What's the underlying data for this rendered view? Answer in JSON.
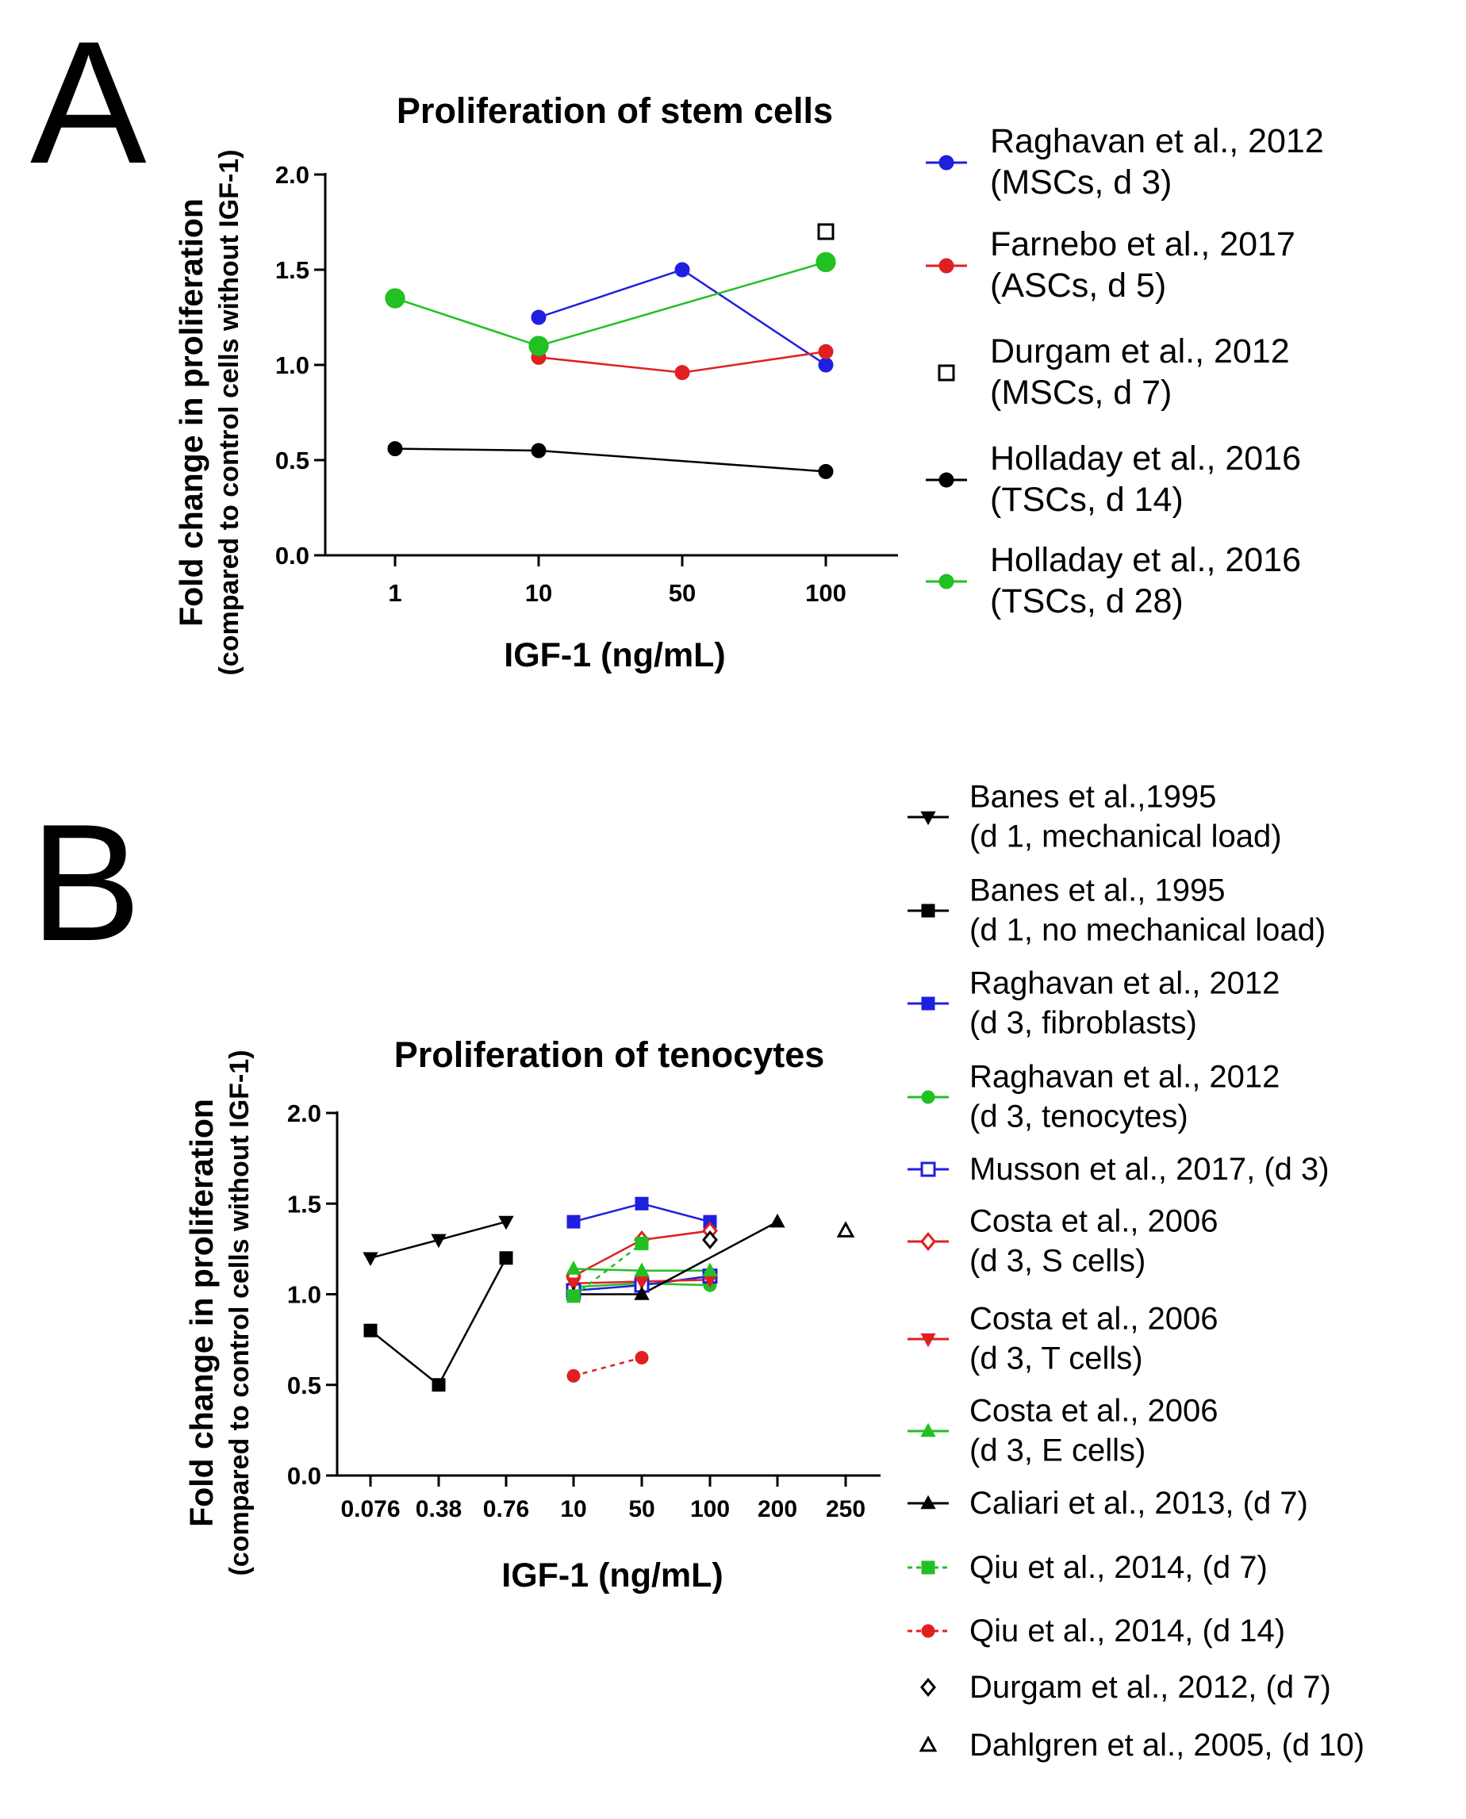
{
  "chart_data": [
    {
      "panel": "A",
      "type": "line",
      "title": "Proliferation of stem cells",
      "xlabel": "IGF-1 (ng/mL)",
      "ylabel": "Fold change in proliferation",
      "ylabel2": "(compared to control cells without IGF-1)",
      "categories": [
        "1",
        "10",
        "50",
        "100"
      ],
      "ylim": [
        0,
        2.0
      ],
      "yticks": [
        "0.0",
        "0.5",
        "1.0",
        "1.5",
        "2.0"
      ],
      "grid": false,
      "legend_position": "right",
      "series": [
        {
          "name": "Raghavan et al., 2012",
          "detail": "(MSCs, d 3)",
          "color": "#1f1fe0",
          "marker": "circle",
          "filled": true,
          "line": "solid",
          "values": [
            null,
            1.25,
            1.5,
            1.0
          ]
        },
        {
          "name": "Farnebo et al., 2017",
          "detail": "(ASCs, d 5)",
          "color": "#e02020",
          "marker": "circle",
          "filled": true,
          "line": "solid",
          "values": [
            null,
            1.04,
            0.96,
            1.07
          ]
        },
        {
          "name": "Durgam et al., 2012",
          "detail": "(MSCs, d 7)",
          "color": "#000000",
          "marker": "square",
          "filled": false,
          "line": "none",
          "values": [
            null,
            null,
            null,
            1.7
          ]
        },
        {
          "name": "Holladay et al., 2016",
          "detail": "(TSCs, d 14)",
          "color": "#000000",
          "marker": "circle",
          "filled": true,
          "line": "solid",
          "values": [
            0.56,
            0.55,
            null,
            0.44
          ]
        },
        {
          "name": "Holladay et al., 2016",
          "detail": "(TSCs, d 28)",
          "color": "#22c022",
          "marker": "circle",
          "filled": true,
          "line": "solid",
          "big": true,
          "values": [
            1.35,
            1.1,
            null,
            1.54
          ]
        }
      ]
    },
    {
      "panel": "B",
      "type": "line",
      "title": "Proliferation of tenocytes",
      "xlabel": "IGF-1 (ng/mL)",
      "ylabel": "Fold change in proliferation",
      "ylabel2": "(compared to control cells without IGF-1)",
      "categories": [
        "0.076",
        "0.38",
        "0.76",
        "10",
        "50",
        "100",
        "200",
        "250"
      ],
      "ylim": [
        0,
        2.0
      ],
      "yticks": [
        "0.0",
        "0.5",
        "1.0",
        "1.5",
        "2.0"
      ],
      "grid": false,
      "legend_position": "right",
      "series": [
        {
          "name": "Banes et al.,1995",
          "detail": "(d 1, mechanical load)",
          "color": "#000000",
          "marker": "triangle-down",
          "filled": true,
          "line": "solid",
          "values": [
            1.2,
            1.3,
            1.4,
            null,
            null,
            null,
            null,
            null
          ]
        },
        {
          "name": "Banes et al., 1995",
          "detail": "(d 1, no mechanical load)",
          "color": "#000000",
          "marker": "square",
          "filled": true,
          "line": "solid",
          "values": [
            0.8,
            0.5,
            1.2,
            null,
            null,
            null,
            null,
            null
          ]
        },
        {
          "name": "Raghavan et al., 2012",
          "detail": "(d 3, fibroblasts)",
          "color": "#1f1fe0",
          "marker": "square",
          "filled": true,
          "line": "solid",
          "values": [
            null,
            null,
            null,
            1.4,
            1.5,
            1.4,
            null,
            null
          ]
        },
        {
          "name": "Raghavan et al., 2012",
          "detail": "(d 3, tenocytes)",
          "color": "#22c022",
          "marker": "circle",
          "filled": true,
          "line": "solid",
          "values": [
            null,
            null,
            null,
            1.04,
            1.06,
            1.05,
            null,
            null
          ]
        },
        {
          "name": "Musson et al., 2017, (d 3)",
          "detail": "",
          "color": "#1f1fe0",
          "marker": "square",
          "filled": false,
          "line": "solid",
          "values": [
            null,
            null,
            null,
            1.02,
            1.05,
            1.1,
            null,
            null
          ]
        },
        {
          "name": "Costa et al., 2006",
          "detail": "(d 3, S cells)",
          "color": "#e02020",
          "marker": "diamond",
          "filled": false,
          "line": "solid",
          "values": [
            null,
            null,
            null,
            1.1,
            1.3,
            1.35,
            null,
            null
          ]
        },
        {
          "name": "Costa et al., 2006",
          "detail": "(d 3, T cells)",
          "color": "#e02020",
          "marker": "triangle-down",
          "filled": true,
          "line": "solid",
          "values": [
            null,
            null,
            null,
            1.06,
            1.07,
            1.08,
            null,
            null
          ]
        },
        {
          "name": "Costa et al., 2006",
          "detail": "(d 3, E cells)",
          "color": "#22c022",
          "marker": "triangle-up",
          "filled": true,
          "line": "solid",
          "values": [
            null,
            null,
            null,
            1.14,
            1.13,
            1.13,
            null,
            null
          ]
        },
        {
          "name": "Caliari et al., 2013, (d 7)",
          "detail": "",
          "color": "#000000",
          "marker": "triangle-up",
          "filled": true,
          "line": "solid",
          "values": [
            null,
            null,
            null,
            1.0,
            1.0,
            null,
            1.4,
            null
          ]
        },
        {
          "name": "Qiu et al., 2014, (d 7)",
          "detail": "",
          "color": "#22c022",
          "marker": "square",
          "filled": true,
          "line": "dotted",
          "values": [
            null,
            null,
            null,
            0.99,
            1.28,
            null,
            null,
            null
          ]
        },
        {
          "name": "Qiu et al., 2014, (d 14)",
          "detail": "",
          "color": "#e02020",
          "marker": "circle",
          "filled": true,
          "line": "dotted",
          "values": [
            null,
            null,
            null,
            0.55,
            0.65,
            null,
            null,
            null
          ]
        },
        {
          "name": "Durgam et al., 2012, (d 7)",
          "detail": "",
          "color": "#000000",
          "marker": "diamond",
          "filled": false,
          "line": "none",
          "values": [
            null,
            null,
            null,
            null,
            null,
            1.3,
            null,
            null
          ]
        },
        {
          "name": "Dahlgren et al., 2005, (d 10)",
          "detail": "",
          "color": "#000000",
          "marker": "triangle-up",
          "filled": false,
          "line": "none",
          "values": [
            null,
            null,
            null,
            null,
            null,
            null,
            null,
            1.35
          ]
        }
      ]
    }
  ],
  "panels": {
    "a_letter": "A",
    "b_letter": "B"
  }
}
